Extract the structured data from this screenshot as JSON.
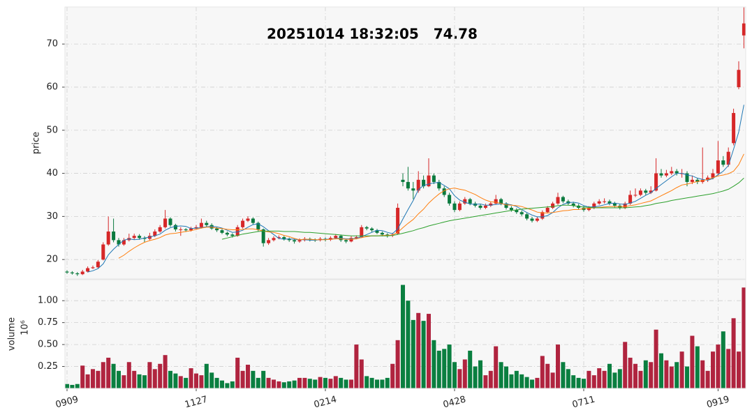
{
  "chart_data": {
    "type": "candlestick",
    "title": "20251014 18:32:05   74.78",
    "y_label": "price",
    "categories": [
      "0909",
      null,
      null,
      null,
      null,
      null,
      null,
      null,
      null,
      null,
      null,
      null,
      null,
      null,
      null,
      null,
      null,
      null,
      null,
      null,
      null,
      null,
      null,
      null,
      null,
      "1127",
      null,
      null,
      null,
      null,
      null,
      null,
      null,
      null,
      null,
      null,
      null,
      null,
      null,
      null,
      null,
      null,
      null,
      null,
      null,
      null,
      null,
      null,
      null,
      null,
      "0214",
      null,
      null,
      null,
      null,
      null,
      null,
      null,
      null,
      null,
      null,
      null,
      null,
      null,
      null,
      null,
      null,
      null,
      null,
      null,
      null,
      null,
      null,
      null,
      null,
      "0428",
      null,
      null,
      null,
      null,
      null,
      null,
      null,
      null,
      null,
      null,
      null,
      null,
      null,
      null,
      null,
      null,
      null,
      null,
      null,
      null,
      null,
      null,
      null,
      null,
      "0711",
      null,
      null,
      null,
      null,
      null,
      null,
      null,
      null,
      null,
      null,
      null,
      null,
      null,
      null,
      null,
      null,
      null,
      null,
      null,
      null,
      null,
      null,
      null,
      null,
      null,
      "0919",
      null,
      null,
      null,
      null,
      null
    ],
    "open": [
      17.2,
      17.0,
      16.8,
      16.6,
      17.2,
      18.0,
      18.2,
      20.0,
      23.5,
      26.5,
      24.5,
      23.5,
      24.5,
      25.0,
      25.5,
      25.0,
      24.8,
      25.5,
      26.5,
      27.5,
      29.5,
      28.0,
      27.0,
      27.0,
      26.8,
      27.2,
      27.5,
      28.5,
      28.0,
      27.2,
      26.8,
      26.2,
      25.8,
      25.5,
      27.5,
      29.0,
      29.5,
      28.5,
      27.0,
      23.8,
      24.5,
      25.0,
      25.2,
      24.8,
      24.5,
      24.2,
      24.5,
      24.8,
      24.6,
      24.5,
      24.8,
      24.6,
      25.0,
      25.5,
      24.5,
      24.2,
      25.0,
      25.2,
      27.5,
      27.2,
      26.8,
      26.2,
      25.8,
      25.6,
      26.0,
      38.5,
      38.0,
      36.5,
      36.0,
      38.5,
      37.0,
      39.5,
      38.0,
      36.5,
      35.0,
      33.0,
      31.5,
      33.0,
      34.0,
      33.0,
      32.5,
      32.0,
      32.5,
      33.0,
      34.0,
      33.0,
      32.0,
      31.5,
      31.0,
      30.5,
      29.5,
      29.0,
      29.5,
      31.0,
      32.0,
      33.0,
      34.5,
      33.5,
      33.0,
      32.5,
      32.0,
      31.5,
      32.0,
      33.0,
      33.5,
      33.5,
      33.0,
      32.5,
      32.0,
      33.0,
      35.0,
      35.0,
      36.0,
      35.5,
      36.0,
      40.0,
      39.5,
      40.0,
      40.5,
      40.0,
      40.0,
      38.0,
      38.5,
      38.0,
      38.5,
      39.0,
      40.0,
      43.0,
      42.0,
      47.0,
      60.0,
      72.0
    ],
    "close": [
      17.0,
      16.8,
      16.6,
      17.2,
      18.0,
      18.2,
      19.5,
      23.5,
      26.5,
      24.5,
      23.5,
      24.5,
      25.0,
      25.5,
      25.0,
      24.8,
      25.5,
      26.5,
      27.5,
      29.5,
      28.0,
      27.0,
      27.0,
      26.8,
      27.2,
      27.5,
      28.5,
      28.0,
      27.2,
      26.8,
      26.2,
      25.8,
      25.5,
      27.5,
      29.0,
      29.5,
      28.5,
      27.0,
      23.8,
      24.5,
      25.0,
      25.2,
      24.8,
      24.5,
      24.2,
      24.5,
      24.8,
      24.6,
      24.5,
      24.8,
      24.6,
      25.0,
      25.5,
      24.5,
      24.2,
      25.0,
      25.2,
      27.5,
      27.2,
      26.8,
      26.2,
      25.8,
      25.6,
      25.8,
      32.0,
      38.0,
      36.5,
      36.0,
      38.5,
      37.0,
      39.5,
      38.0,
      36.5,
      35.0,
      33.0,
      31.5,
      33.0,
      34.0,
      33.0,
      32.5,
      32.0,
      32.5,
      33.0,
      34.0,
      33.0,
      32.0,
      31.5,
      31.0,
      30.5,
      29.5,
      29.0,
      29.5,
      31.0,
      32.0,
      33.0,
      34.5,
      33.5,
      33.0,
      32.5,
      32.0,
      31.5,
      32.0,
      33.0,
      33.5,
      33.5,
      33.0,
      32.5,
      32.0,
      33.0,
      35.0,
      35.0,
      36.0,
      35.5,
      36.0,
      40.0,
      39.5,
      40.0,
      40.5,
      40.0,
      40.0,
      38.0,
      38.5,
      38.0,
      38.5,
      39.0,
      40.0,
      43.0,
      42.0,
      45.0,
      54.0,
      64.0,
      74.78
    ],
    "high": [
      17.5,
      17.3,
      17.1,
      17.6,
      18.4,
      18.6,
      19.9,
      24.0,
      30.0,
      29.5,
      25.0,
      25.0,
      26.0,
      26.0,
      25.9,
      25.4,
      26.2,
      27.0,
      28.0,
      31.5,
      29.8,
      28.3,
      27.5,
      27.3,
      27.6,
      28.0,
      29.5,
      29.0,
      28.4,
      27.5,
      27.1,
      26.5,
      26.1,
      28.0,
      29.5,
      30.0,
      29.8,
      28.8,
      27.2,
      25.0,
      25.4,
      25.6,
      25.5,
      25.1,
      24.8,
      24.9,
      25.2,
      25.1,
      24.9,
      25.2,
      25.1,
      25.4,
      25.9,
      25.8,
      24.8,
      25.4,
      25.6,
      28.0,
      27.8,
      27.5,
      27.1,
      26.5,
      26.1,
      26.2,
      33.0,
      40.0,
      41.5,
      38.0,
      40.5,
      39.5,
      43.5,
      40.0,
      38.5,
      37.0,
      35.5,
      33.5,
      33.5,
      34.5,
      34.3,
      33.4,
      32.9,
      33.0,
      33.4,
      35.0,
      34.3,
      33.3,
      32.4,
      31.9,
      31.4,
      30.8,
      29.9,
      29.9,
      31.4,
      32.4,
      33.4,
      35.5,
      34.8,
      33.9,
      33.4,
      32.9,
      32.4,
      32.4,
      33.4,
      34.0,
      34.2,
      33.9,
      33.4,
      32.9,
      33.4,
      36.0,
      36.5,
      36.5,
      36.4,
      37.0,
      43.5,
      41.0,
      40.8,
      41.5,
      41.0,
      41.0,
      40.5,
      39.5,
      38.9,
      46.0,
      39.5,
      41.0,
      47.5,
      44.0,
      46.0,
      55.0,
      66.0,
      78.5
    ],
    "low": [
      16.7,
      16.5,
      16.2,
      16.4,
      17.0,
      17.8,
      18.0,
      19.8,
      23.2,
      24.0,
      23.0,
      23.2,
      24.2,
      24.6,
      24.6,
      24.0,
      24.5,
      25.2,
      26.2,
      27.2,
      27.6,
      26.5,
      25.5,
      26.4,
      26.5,
      26.9,
      27.2,
      27.6,
      26.9,
      26.4,
      25.9,
      25.4,
      25.1,
      25.3,
      27.2,
      28.7,
      28.1,
      26.5,
      23.0,
      23.4,
      24.2,
      24.7,
      24.4,
      24.1,
      23.7,
      23.9,
      24.2,
      24.2,
      24.1,
      24.2,
      24.2,
      24.3,
      24.7,
      24.1,
      23.8,
      24.0,
      24.7,
      25.0,
      26.8,
      26.4,
      25.9,
      25.4,
      25.1,
      25.2,
      25.8,
      37.0,
      36.0,
      34.0,
      35.5,
      36.5,
      36.8,
      37.5,
      36.0,
      34.5,
      32.5,
      31.0,
      31.2,
      32.7,
      32.6,
      32.1,
      31.6,
      31.7,
      32.2,
      32.7,
      32.6,
      31.6,
      31.1,
      30.6,
      30.1,
      29.1,
      28.6,
      28.7,
      29.2,
      30.7,
      31.7,
      32.7,
      33.1,
      32.6,
      32.1,
      31.6,
      31.1,
      31.2,
      31.7,
      32.7,
      33.0,
      32.6,
      32.1,
      31.6,
      31.7,
      32.7,
      34.5,
      34.7,
      35.0,
      35.2,
      35.8,
      39.0,
      39.1,
      39.6,
      39.5,
      39.0,
      37.0,
      37.5,
      37.5,
      37.6,
      38.0,
      38.6,
      39.5,
      41.5,
      41.5,
      46.5,
      59.5,
      69.0
    ],
    "up_color": "#d62728",
    "down_color": "#0b7a3e",
    "ylim": [
      15.5,
      78.6
    ],
    "yticks": [
      20,
      30,
      40,
      50,
      60,
      70
    ],
    "grid": true,
    "series": [
      {
        "color": "#1f77b4",
        "values": [
          null,
          null,
          null,
          null,
          17.1,
          17.4,
          17.9,
          19.0,
          21.1,
          22.4,
          23.5,
          24.5,
          24.8,
          24.6,
          24.7,
          25.0,
          25.2,
          25.5,
          25.9,
          26.8,
          27.4,
          27.7,
          27.8,
          27.7,
          27.2,
          27.3,
          27.4,
          27.6,
          27.7,
          27.6,
          27.3,
          26.8,
          26.3,
          26.4,
          26.8,
          27.5,
          28.1,
          28.3,
          27.6,
          26.7,
          25.8,
          24.9,
          24.7,
          24.8,
          24.7,
          24.6,
          24.6,
          24.5,
          24.5,
          24.6,
          24.7,
          24.7,
          24.9,
          24.9,
          24.8,
          24.8,
          24.9,
          25.3,
          25.8,
          26.3,
          26.8,
          26.7,
          26.3,
          26.0,
          27.1,
          29.4,
          31.6,
          33.7,
          36.2,
          37.2,
          37.5,
          37.8,
          37.9,
          37.2,
          36.4,
          34.8,
          33.8,
          33.3,
          32.9,
          32.8,
          32.9,
          32.6,
          32.6,
          32.8,
          32.9,
          32.9,
          32.7,
          32.3,
          31.6,
          30.9,
          30.3,
          29.9,
          29.9,
          30.2,
          30.9,
          32.0,
          32.8,
          33.2,
          33.3,
          33.1,
          32.5,
          32.2,
          32.2,
          32.4,
          32.7,
          33.0,
          33.1,
          32.9,
          32.8,
          33.1,
          33.5,
          34.2,
          34.9,
          35.5,
          36.5,
          37.4,
          38.3,
          39.2,
          40.0,
          40.0,
          39.6,
          39.4,
          38.9,
          38.6,
          38.4,
          38.8,
          39.7,
          40.5,
          41.8,
          45.6,
          49.6,
          55.9
        ]
      },
      {
        "color": "#ff7f0e",
        "values": [
          null,
          null,
          null,
          null,
          null,
          null,
          null,
          null,
          null,
          null,
          20.3,
          21.0,
          21.9,
          22.7,
          23.4,
          24.0,
          24.4,
          24.7,
          25.1,
          25.7,
          26.0,
          26.1,
          26.3,
          26.5,
          26.7,
          27.0,
          27.3,
          27.5,
          27.5,
          27.3,
          27.2,
          27.0,
          26.9,
          26.9,
          27.0,
          27.1,
          27.1,
          26.9,
          26.6,
          26.4,
          26.3,
          26.0,
          25.6,
          25.3,
          24.9,
          24.6,
          24.7,
          24.7,
          24.6,
          24.6,
          24.6,
          24.7,
          24.8,
          24.8,
          24.7,
          24.7,
          24.8,
          25.1,
          25.3,
          25.5,
          25.5,
          25.6,
          25.6,
          25.7,
          26.3,
          27.4,
          28.4,
          29.3,
          30.6,
          31.7,
          33.1,
          34.2,
          35.2,
          36.0,
          36.4,
          36.6,
          36.3,
          36.1,
          35.6,
          35.1,
          34.4,
          33.8,
          33.4,
          33.3,
          33.0,
          32.7,
          32.6,
          32.5,
          32.3,
          31.9,
          31.5,
          31.0,
          30.8,
          30.8,
          30.9,
          31.1,
          31.3,
          31.4,
          31.6,
          31.6,
          31.8,
          31.9,
          32.0,
          32.1,
          32.2,
          32.3,
          32.3,
          32.3,
          32.3,
          32.5,
          32.7,
          33.0,
          33.3,
          33.6,
          34.2,
          34.8,
          35.4,
          36.0,
          36.7,
          37.3,
          37.5,
          37.8,
          38.1,
          38.3,
          38.6,
          39.0,
          39.4,
          39.6,
          39.9,
          40.5,
          42.0,
          44.5
        ]
      },
      {
        "color": "#2ca02c",
        "values": [
          null,
          null,
          null,
          null,
          null,
          null,
          null,
          null,
          null,
          null,
          null,
          null,
          null,
          null,
          null,
          null,
          null,
          null,
          null,
          null,
          null,
          null,
          null,
          null,
          null,
          null,
          null,
          null,
          null,
          null,
          24.7,
          25.0,
          25.3,
          25.6,
          25.9,
          26.1,
          26.3,
          26.5,
          26.6,
          26.6,
          26.6,
          26.6,
          26.5,
          26.5,
          26.5,
          26.4,
          26.3,
          26.3,
          26.2,
          26.1,
          26.0,
          25.9,
          25.8,
          25.7,
          25.6,
          25.5,
          25.5,
          25.5,
          25.5,
          25.5,
          25.5,
          25.5,
          25.5,
          25.6,
          25.8,
          26.1,
          26.4,
          26.7,
          27.1,
          27.4,
          27.8,
          28.1,
          28.4,
          28.7,
          29.0,
          29.2,
          29.4,
          29.6,
          29.8,
          30.0,
          30.2,
          30.4,
          30.6,
          30.8,
          31.0,
          31.2,
          31.4,
          31.5,
          31.7,
          31.8,
          31.9,
          32.0,
          32.1,
          32.2,
          32.3,
          32.5,
          32.6,
          32.6,
          32.5,
          32.3,
          32.2,
          32.1,
          32.0,
          32.0,
          32.0,
          32.0,
          32.0,
          32.0,
          32.0,
          32.1,
          32.2,
          32.3,
          32.5,
          32.7,
          33.0,
          33.2,
          33.4,
          33.7,
          33.9,
          34.1,
          34.3,
          34.5,
          34.7,
          34.9,
          35.1,
          35.3,
          35.6,
          35.9,
          36.3,
          37.0,
          37.8,
          38.9
        ]
      }
    ],
    "volume": {
      "label": "volume",
      "offset_label": "10⁶",
      "up_color": "#b0243f",
      "down_color": "#0a7f40",
      "ylim": [
        0,
        1.24
      ],
      "yticks": [
        0.25,
        {
          "value": 0.5,
          "label": "0.50"
        },
        0.75,
        {
          "value": 1,
          "label": "1.00"
        }
      ],
      "values": [
        0.05,
        0.04,
        0.05,
        0.26,
        0.16,
        0.22,
        0.2,
        0.3,
        0.35,
        0.28,
        0.2,
        0.15,
        0.3,
        0.2,
        0.16,
        0.15,
        0.3,
        0.22,
        0.28,
        0.38,
        0.2,
        0.17,
        0.14,
        0.12,
        0.23,
        0.17,
        0.15,
        0.28,
        0.18,
        0.12,
        0.09,
        0.06,
        0.08,
        0.35,
        0.2,
        0.27,
        0.2,
        0.12,
        0.2,
        0.12,
        0.1,
        0.08,
        0.07,
        0.08,
        0.09,
        0.12,
        0.12,
        0.11,
        0.1,
        0.13,
        0.12,
        0.11,
        0.14,
        0.12,
        0.1,
        0.1,
        0.5,
        0.33,
        0.14,
        0.12,
        0.1,
        0.1,
        0.12,
        0.28,
        0.55,
        1.18,
        1.0,
        0.78,
        0.86,
        0.77,
        0.85,
        0.55,
        0.43,
        0.45,
        0.5,
        0.3,
        0.22,
        0.33,
        0.43,
        0.25,
        0.32,
        0.15,
        0.2,
        0.48,
        0.3,
        0.25,
        0.16,
        0.2,
        0.16,
        0.13,
        0.1,
        0.12,
        0.37,
        0.28,
        0.18,
        0.5,
        0.3,
        0.22,
        0.15,
        0.12,
        0.11,
        0.2,
        0.15,
        0.23,
        0.2,
        0.28,
        0.18,
        0.22,
        0.53,
        0.35,
        0.28,
        0.2,
        0.32,
        0.3,
        0.67,
        0.4,
        0.32,
        0.25,
        0.3,
        0.42,
        0.25,
        0.6,
        0.48,
        0.32,
        0.2,
        0.42,
        0.5,
        0.65,
        0.45,
        0.8,
        0.42,
        1.15
      ]
    }
  }
}
